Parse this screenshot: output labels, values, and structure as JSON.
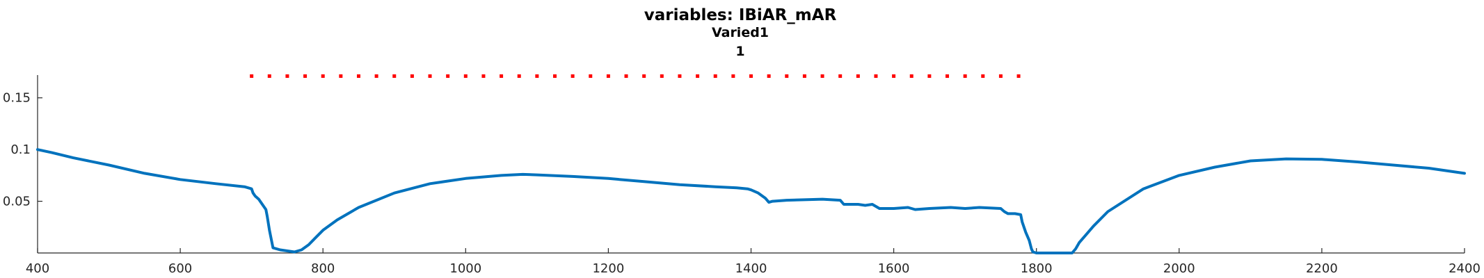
{
  "chart_data": {
    "type": "line",
    "title_lines": [
      "variables: IBiAR_mAR",
      "Varied1",
      "1"
    ],
    "xlim": [
      400,
      2400
    ],
    "ylim": [
      0,
      0.172
    ],
    "x_ticks": [
      400,
      600,
      800,
      1000,
      1200,
      1400,
      1600,
      1800,
      2000,
      2200,
      2400
    ],
    "y_ticks": [
      0.05,
      0.1,
      0.15
    ],
    "y_tick_labels": [
      "0.05",
      "0.1",
      "0.15"
    ],
    "grid": false,
    "series": [
      {
        "color": "#0072BD",
        "style": "solid",
        "x": [
          400,
          420,
          450,
          500,
          550,
          600,
          650,
          690,
          695,
          700,
          702,
          705,
          710,
          715,
          720,
          722,
          725,
          730,
          740,
          760,
          770,
          780,
          790,
          800,
          820,
          850,
          900,
          950,
          1000,
          1050,
          1080,
          1100,
          1150,
          1200,
          1250,
          1300,
          1350,
          1380,
          1395,
          1400,
          1410,
          1420,
          1425,
          1430,
          1450,
          1500,
          1525,
          1530,
          1550,
          1560,
          1570,
          1580,
          1600,
          1620,
          1630,
          1650,
          1680,
          1700,
          1720,
          1750,
          1755,
          1760,
          1770,
          1778,
          1780,
          1785,
          1790,
          1793,
          1795,
          1800,
          1850,
          1855,
          1860,
          1870,
          1880,
          1900,
          1950,
          2000,
          2050,
          2100,
          2150,
          2200,
          2250,
          2300,
          2350,
          2400
        ],
        "y": [
          0.1,
          0.097,
          0.092,
          0.085,
          0.077,
          0.071,
          0.067,
          0.064,
          0.063,
          0.062,
          0.058,
          0.055,
          0.052,
          0.047,
          0.042,
          0.035,
          0.022,
          0.005,
          0.003,
          0.001,
          0.003,
          0.008,
          0.015,
          0.022,
          0.032,
          0.044,
          0.058,
          0.067,
          0.072,
          0.075,
          0.076,
          0.0755,
          0.074,
          0.072,
          0.069,
          0.066,
          0.064,
          0.063,
          0.062,
          0.061,
          0.058,
          0.053,
          0.049,
          0.05,
          0.051,
          0.052,
          0.051,
          0.047,
          0.047,
          0.046,
          0.047,
          0.043,
          0.043,
          0.044,
          0.042,
          0.043,
          0.044,
          0.043,
          0.044,
          0.043,
          0.04,
          0.038,
          0.038,
          0.037,
          0.03,
          0.02,
          0.012,
          0.004,
          0.001,
          0.0,
          0.0,
          0.004,
          0.01,
          0.018,
          0.026,
          0.04,
          0.062,
          0.075,
          0.083,
          0.089,
          0.091,
          0.0905,
          0.088,
          0.085,
          0.082,
          0.077
        ]
      },
      {
        "color": "#FF0000",
        "style": "dotted",
        "x": [
          700,
          725,
          750,
          775,
          800,
          825,
          850,
          875,
          900,
          925,
          950,
          975,
          1000,
          1025,
          1050,
          1075,
          1100,
          1125,
          1150,
          1175,
          1200,
          1225,
          1250,
          1275,
          1300,
          1325,
          1350,
          1375,
          1400,
          1425,
          1450,
          1475,
          1500,
          1525,
          1550,
          1575,
          1600,
          1625,
          1650,
          1675,
          1700,
          1725,
          1750,
          1775
        ],
        "y": [
          0.171,
          0.171,
          0.171,
          0.171,
          0.171,
          0.171,
          0.171,
          0.171,
          0.171,
          0.171,
          0.171,
          0.171,
          0.171,
          0.171,
          0.171,
          0.171,
          0.171,
          0.171,
          0.171,
          0.171,
          0.171,
          0.171,
          0.171,
          0.171,
          0.171,
          0.171,
          0.171,
          0.171,
          0.171,
          0.171,
          0.171,
          0.171,
          0.171,
          0.171,
          0.171,
          0.171,
          0.171,
          0.171,
          0.171,
          0.171,
          0.171,
          0.171,
          0.171,
          0.171
        ]
      }
    ]
  }
}
